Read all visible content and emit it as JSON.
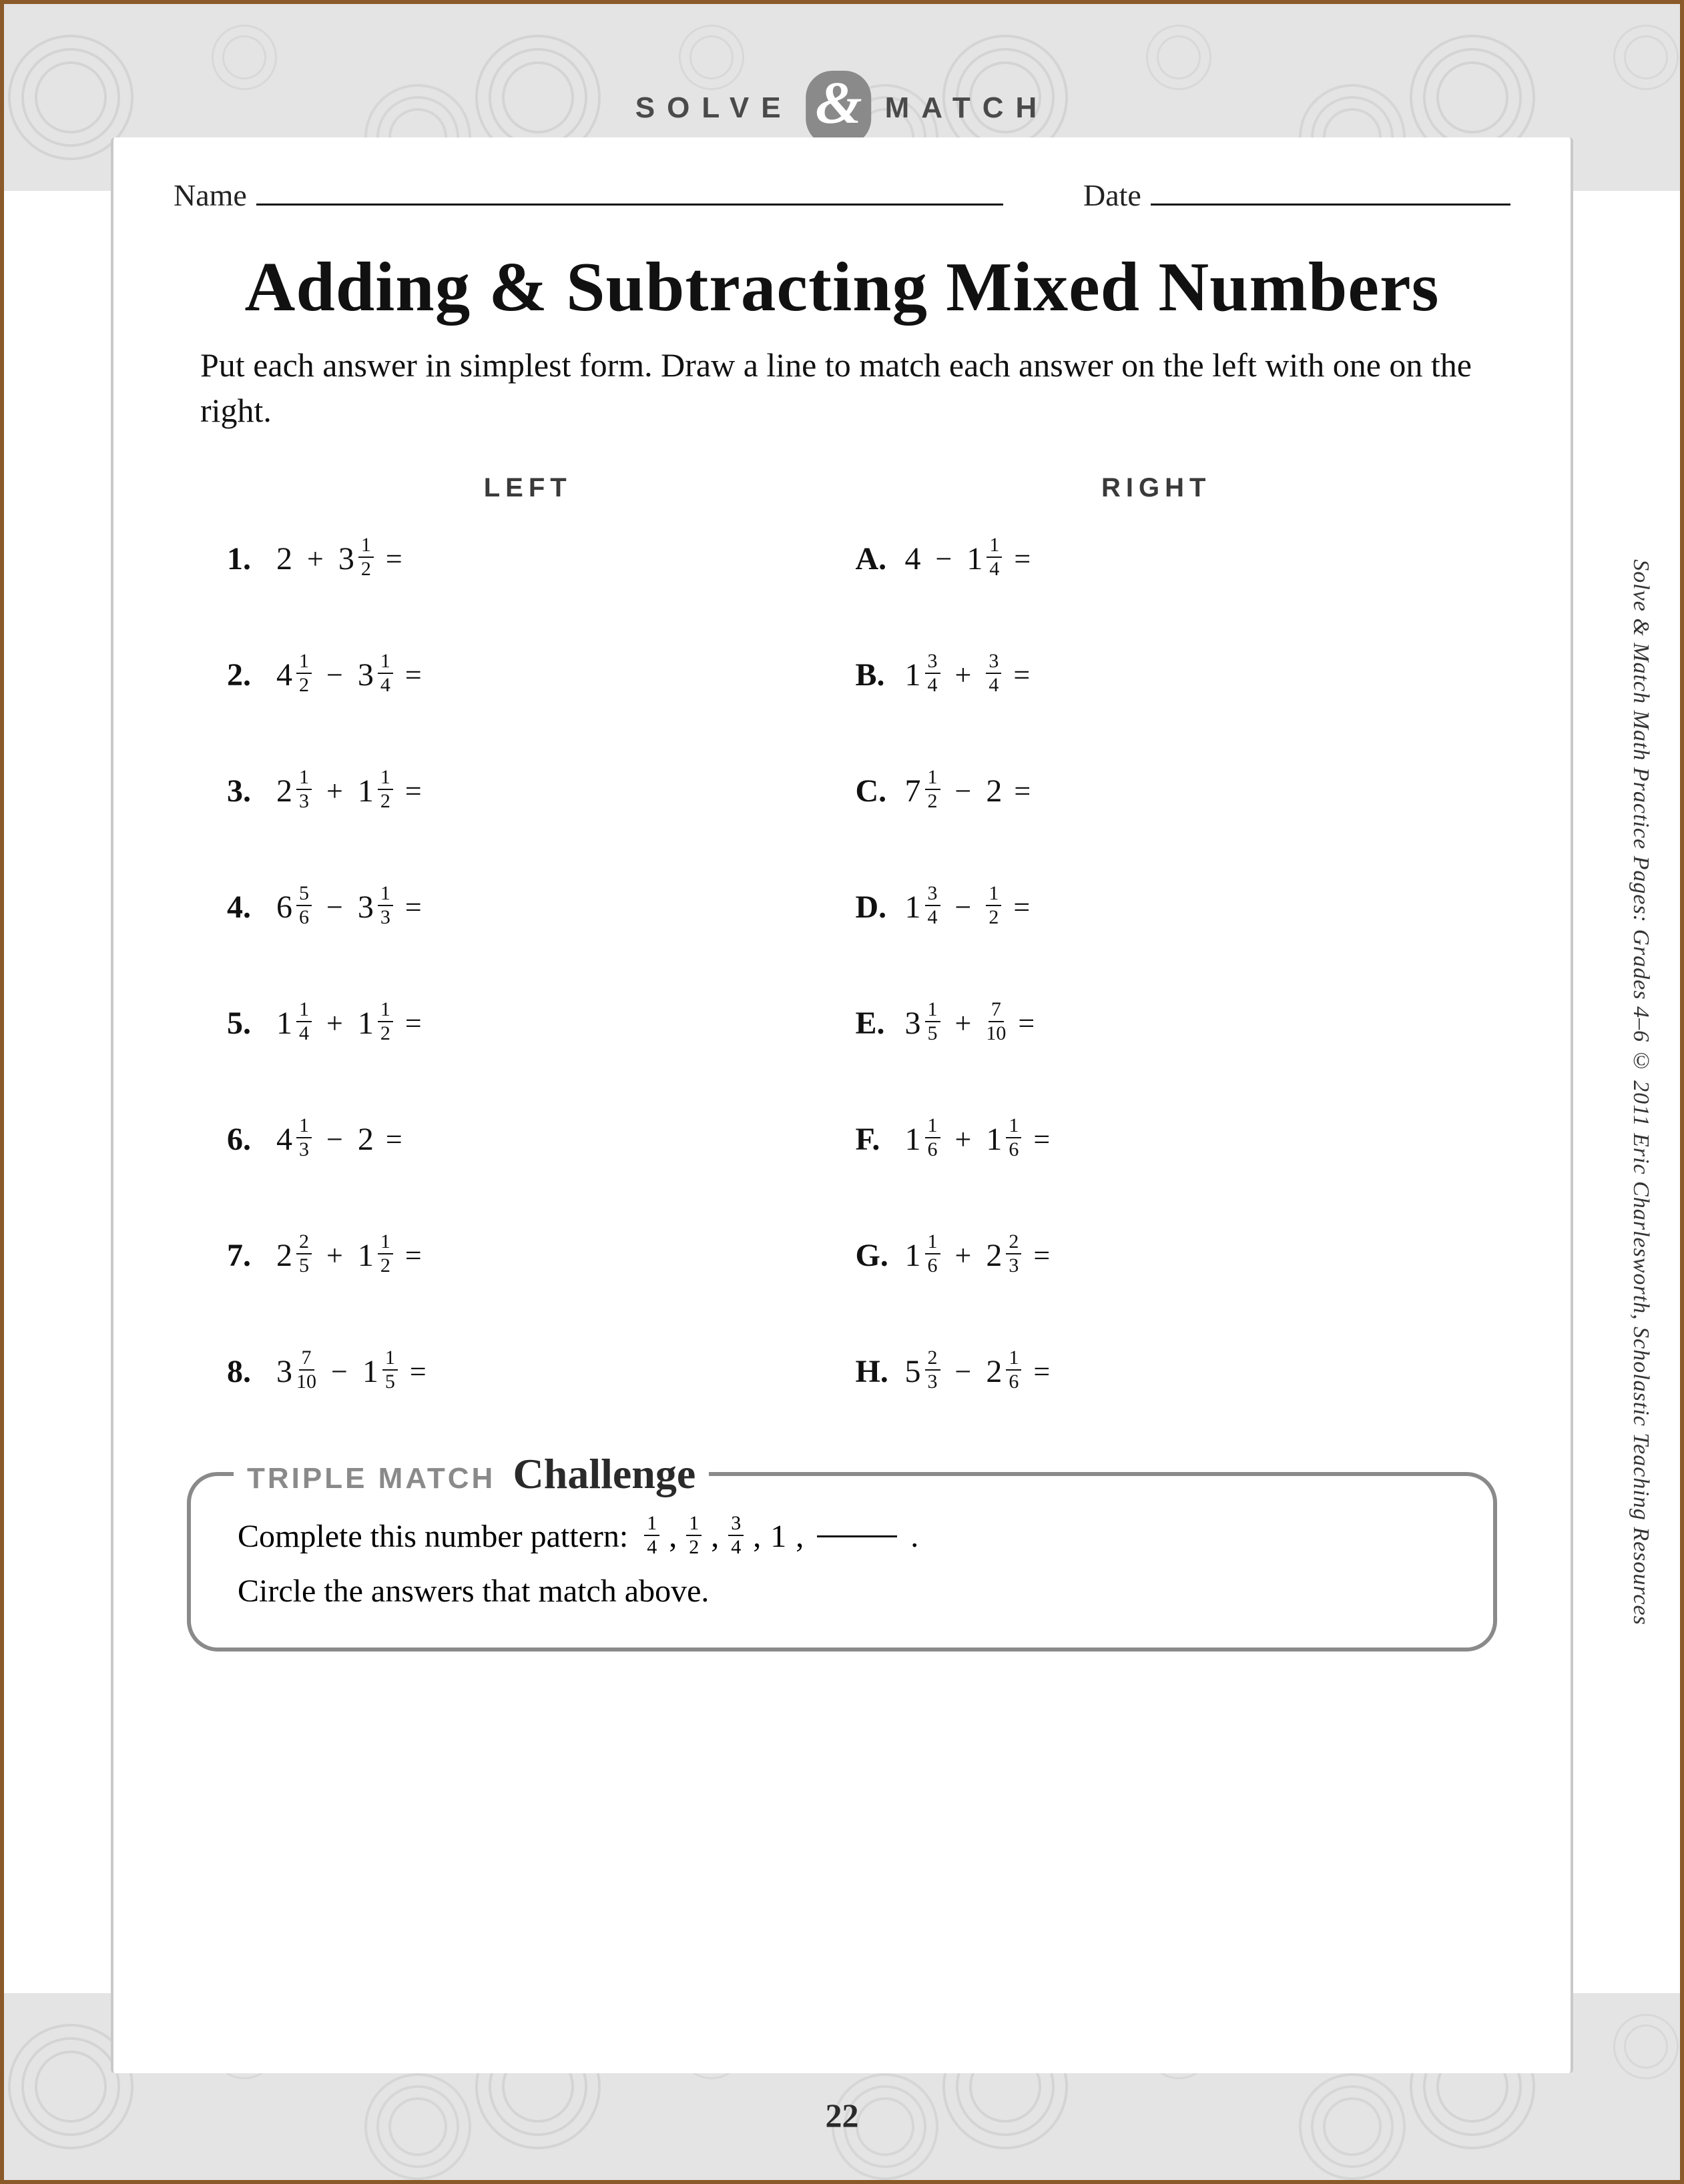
{
  "header": {
    "brand_left": "SOLVE",
    "brand_right": "MATCH",
    "ampersand": "&"
  },
  "fields": {
    "name_label": "Name",
    "date_label": "Date"
  },
  "title": "Adding & Subtracting Mixed Numbers",
  "instructions": "Put each answer in simplest form. Draw a line to match each answer on the left with one on the right.",
  "column_headers": {
    "left": "LEFT",
    "right": "RIGHT"
  },
  "problems_left": [
    {
      "label": "1.",
      "terms": [
        {
          "whole": "2"
        },
        {
          "op": "+"
        },
        {
          "whole": "3",
          "num": "1",
          "den": "2"
        }
      ]
    },
    {
      "label": "2.",
      "terms": [
        {
          "whole": "4",
          "num": "1",
          "den": "2"
        },
        {
          "op": "−"
        },
        {
          "whole": "3",
          "num": "1",
          "den": "4"
        }
      ]
    },
    {
      "label": "3.",
      "terms": [
        {
          "whole": "2",
          "num": "1",
          "den": "3"
        },
        {
          "op": "+"
        },
        {
          "whole": "1",
          "num": "1",
          "den": "2"
        }
      ]
    },
    {
      "label": "4.",
      "terms": [
        {
          "whole": "6",
          "num": "5",
          "den": "6"
        },
        {
          "op": "−"
        },
        {
          "whole": "3",
          "num": "1",
          "den": "3"
        }
      ]
    },
    {
      "label": "5.",
      "terms": [
        {
          "whole": "1",
          "num": "1",
          "den": "4"
        },
        {
          "op": "+"
        },
        {
          "whole": "1",
          "num": "1",
          "den": "2"
        }
      ]
    },
    {
      "label": "6.",
      "terms": [
        {
          "whole": "4",
          "num": "1",
          "den": "3"
        },
        {
          "op": "−"
        },
        {
          "whole": "2"
        }
      ]
    },
    {
      "label": "7.",
      "terms": [
        {
          "whole": "2",
          "num": "2",
          "den": "5"
        },
        {
          "op": "+"
        },
        {
          "whole": "1",
          "num": "1",
          "den": "2"
        }
      ]
    },
    {
      "label": "8.",
      "terms": [
        {
          "whole": "3",
          "num": "7",
          "den": "10"
        },
        {
          "op": "−"
        },
        {
          "whole": "1",
          "num": "1",
          "den": "5"
        }
      ]
    }
  ],
  "problems_right": [
    {
      "label": "A.",
      "terms": [
        {
          "whole": "4"
        },
        {
          "op": "−"
        },
        {
          "whole": "1",
          "num": "1",
          "den": "4"
        }
      ]
    },
    {
      "label": "B.",
      "terms": [
        {
          "whole": "1",
          "num": "3",
          "den": "4"
        },
        {
          "op": "+"
        },
        {
          "num": "3",
          "den": "4"
        }
      ]
    },
    {
      "label": "C.",
      "terms": [
        {
          "whole": "7",
          "num": "1",
          "den": "2"
        },
        {
          "op": "−"
        },
        {
          "whole": "2"
        }
      ]
    },
    {
      "label": "D.",
      "terms": [
        {
          "whole": "1",
          "num": "3",
          "den": "4"
        },
        {
          "op": "−"
        },
        {
          "num": "1",
          "den": "2"
        }
      ]
    },
    {
      "label": "E.",
      "terms": [
        {
          "whole": "3",
          "num": "1",
          "den": "5"
        },
        {
          "op": "+"
        },
        {
          "num": "7",
          "den": "10"
        }
      ]
    },
    {
      "label": "F.",
      "terms": [
        {
          "whole": "1",
          "num": "1",
          "den": "6"
        },
        {
          "op": "+"
        },
        {
          "whole": "1",
          "num": "1",
          "den": "6"
        }
      ]
    },
    {
      "label": "G.",
      "terms": [
        {
          "whole": "1",
          "num": "1",
          "den": "6"
        },
        {
          "op": "+"
        },
        {
          "whole": "2",
          "num": "2",
          "den": "3"
        }
      ]
    },
    {
      "label": "H.",
      "terms": [
        {
          "whole": "5",
          "num": "2",
          "den": "3"
        },
        {
          "op": "−"
        },
        {
          "whole": "2",
          "num": "1",
          "den": "6"
        }
      ]
    }
  ],
  "challenge": {
    "badge": "TRIPLE MATCH",
    "title": "Challenge",
    "prompt": "Complete this number pattern:",
    "pattern": [
      {
        "num": "1",
        "den": "4"
      },
      {
        "num": "1",
        "den": "2"
      },
      {
        "num": "3",
        "den": "4"
      },
      {
        "whole": "1"
      }
    ],
    "after_blank": ".",
    "line2": "Circle the answers that match above."
  },
  "side_credit": "Solve & Match Math Practice Pages: Grades 4–6 © 2011 Eric Charlesworth, Scholastic Teaching Resources",
  "page_number": "22",
  "equals": "=",
  "comma": ","
}
